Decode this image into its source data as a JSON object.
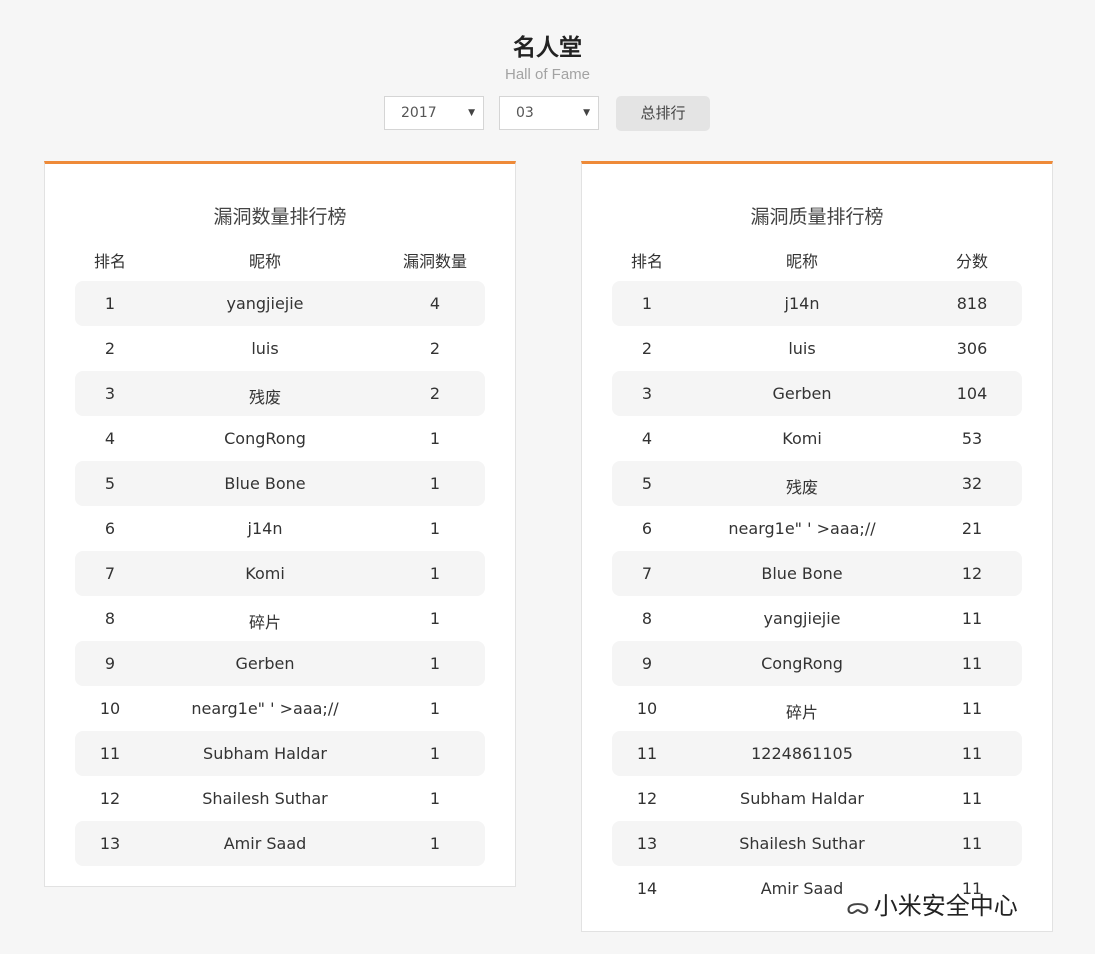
{
  "header": {
    "title": "名人堂",
    "subtitle": "Hall of Fame"
  },
  "filters": {
    "year": "2017",
    "month": "03",
    "total_button": "总排行"
  },
  "left_board": {
    "title": "漏洞数量排行榜",
    "columns": [
      "排名",
      "昵称",
      "漏洞数量"
    ],
    "rows": [
      [
        "1",
        "yangjiejie",
        "4"
      ],
      [
        "2",
        "luis",
        "2"
      ],
      [
        "3",
        "残废",
        "2"
      ],
      [
        "4",
        "CongRong",
        "1"
      ],
      [
        "5",
        "Blue Bone",
        "1"
      ],
      [
        "6",
        "j14n",
        "1"
      ],
      [
        "7",
        "Komi",
        "1"
      ],
      [
        "8",
        "碎片",
        "1"
      ],
      [
        "9",
        "Gerben",
        "1"
      ],
      [
        "10",
        "nearg1e\" ' >aaa;//",
        "1"
      ],
      [
        "11",
        "Subham Haldar",
        "1"
      ],
      [
        "12",
        "Shailesh Suthar",
        "1"
      ],
      [
        "13",
        "Amir Saad",
        "1"
      ]
    ]
  },
  "right_board": {
    "title": "漏洞质量排行榜",
    "columns": [
      "排名",
      "昵称",
      "分数"
    ],
    "rows": [
      [
        "1",
        "j14n",
        "818"
      ],
      [
        "2",
        "luis",
        "306"
      ],
      [
        "3",
        "Gerben",
        "104"
      ],
      [
        "4",
        "Komi",
        "53"
      ],
      [
        "5",
        "残废",
        "32"
      ],
      [
        "6",
        "nearg1e\" ' >aaa;//",
        "21"
      ],
      [
        "7",
        "Blue Bone",
        "12"
      ],
      [
        "8",
        "yangjiejie",
        "11"
      ],
      [
        "9",
        "CongRong",
        "11"
      ],
      [
        "10",
        "碎片",
        "11"
      ],
      [
        "11",
        "1224861105",
        "11"
      ],
      [
        "12",
        "Subham Haldar",
        "11"
      ],
      [
        "13",
        "Shailesh Suthar",
        "11"
      ],
      [
        "14",
        "Amir Saad",
        "11"
      ]
    ]
  },
  "watermark": {
    "text": "小米安全中心",
    "icon": "wechat-icon"
  },
  "colors": {
    "accent": "#ee8a38",
    "background": "#f6f6f6",
    "row_shade": "#f5f5f5"
  }
}
